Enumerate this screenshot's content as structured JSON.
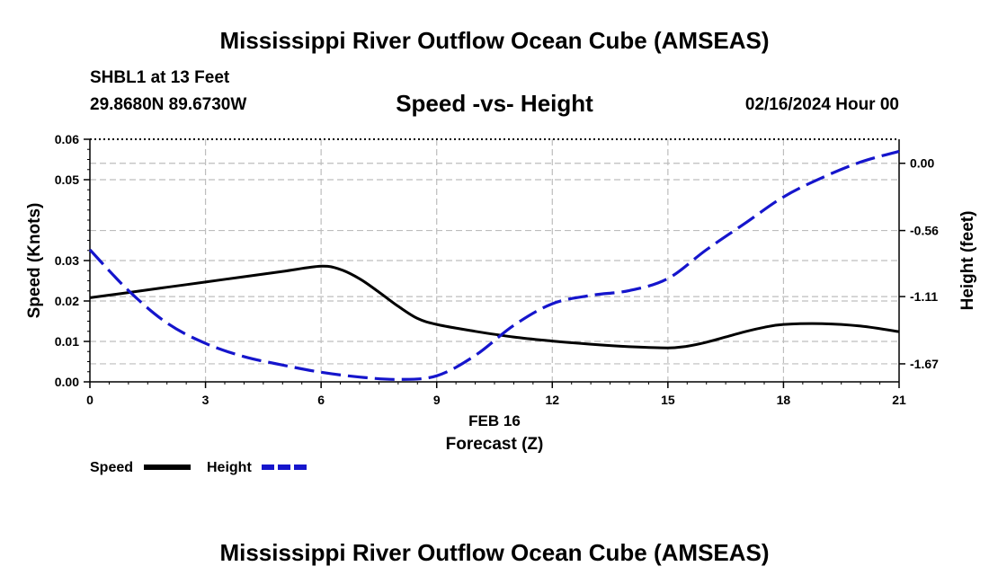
{
  "header": {
    "title": "Mississippi River Outflow Ocean Cube (AMSEAS)",
    "station": "SHBL1 at 13 Feet",
    "coordinates": "29.8680N  89.6730W",
    "subtitle": "Speed -vs- Height",
    "datetime": "02/16/2024 Hour 00"
  },
  "footer": {
    "title": "Mississippi River Outflow Ocean Cube (AMSEAS)"
  },
  "chart_data": {
    "type": "line",
    "title": "Speed -vs- Height",
    "xlabel": "Forecast (Z)",
    "xlabel_date": "FEB 16",
    "ylabel": "Speed (Knots)",
    "y2label": "Height (feet)",
    "xlim": [
      0,
      21
    ],
    "ylim": [
      0,
      0.06
    ],
    "y2lim": [
      -1.82,
      0.2
    ],
    "x_ticks": [
      0,
      3,
      6,
      9,
      12,
      15,
      18,
      21
    ],
    "x_tick_labels": [
      "0",
      "3",
      "6",
      "9",
      "12",
      "15",
      "18",
      "21"
    ],
    "y_ticks": [
      0,
      0.01,
      0.02,
      0.03,
      0.05,
      0.06
    ],
    "y_tick_labels": [
      "0.00",
      "0.01",
      "0.02",
      "0.03",
      "0.05",
      "0.06"
    ],
    "y2_ticks": [
      0.0,
      -0.56,
      -1.11,
      -1.67
    ],
    "y2_tick_labels": [
      "0.00",
      "-0.56",
      "-1.11",
      "-1.67"
    ],
    "grid": true,
    "legend_position": "bottom-left",
    "series": [
      {
        "name": "Speed",
        "axis": "left",
        "color": "#000000",
        "style": "solid",
        "x": [
          0,
          1,
          2,
          3,
          4,
          5,
          6,
          6.5,
          7,
          7.5,
          8,
          8.5,
          9,
          10,
          11,
          12,
          13,
          14,
          15,
          15.5,
          16,
          16.5,
          17,
          17.5,
          18,
          19,
          20,
          21
        ],
        "values": [
          0.0208,
          0.0221,
          0.0234,
          0.0247,
          0.026,
          0.0273,
          0.0286,
          0.0278,
          0.0255,
          0.0222,
          0.0187,
          0.0157,
          0.0142,
          0.0125,
          0.0111,
          0.0101,
          0.0093,
          0.0087,
          0.0084,
          0.0088,
          0.0098,
          0.0111,
          0.0124,
          0.0135,
          0.0142,
          0.0144,
          0.0138,
          0.0124
        ]
      },
      {
        "name": "Height",
        "axis": "right",
        "color": "#1515cc",
        "style": "dashed",
        "x": [
          0,
          1,
          2,
          3,
          4,
          5,
          6,
          7,
          8,
          9,
          10,
          11,
          12,
          13,
          14,
          15,
          16,
          17,
          18,
          19,
          20,
          21
        ],
        "values": [
          -0.72,
          -1.06,
          -1.33,
          -1.5,
          -1.61,
          -1.68,
          -1.74,
          -1.78,
          -1.8,
          -1.77,
          -1.6,
          -1.35,
          -1.17,
          -1.1,
          -1.06,
          -0.96,
          -0.72,
          -0.5,
          -0.28,
          -0.12,
          0.01,
          0.1
        ]
      }
    ]
  }
}
